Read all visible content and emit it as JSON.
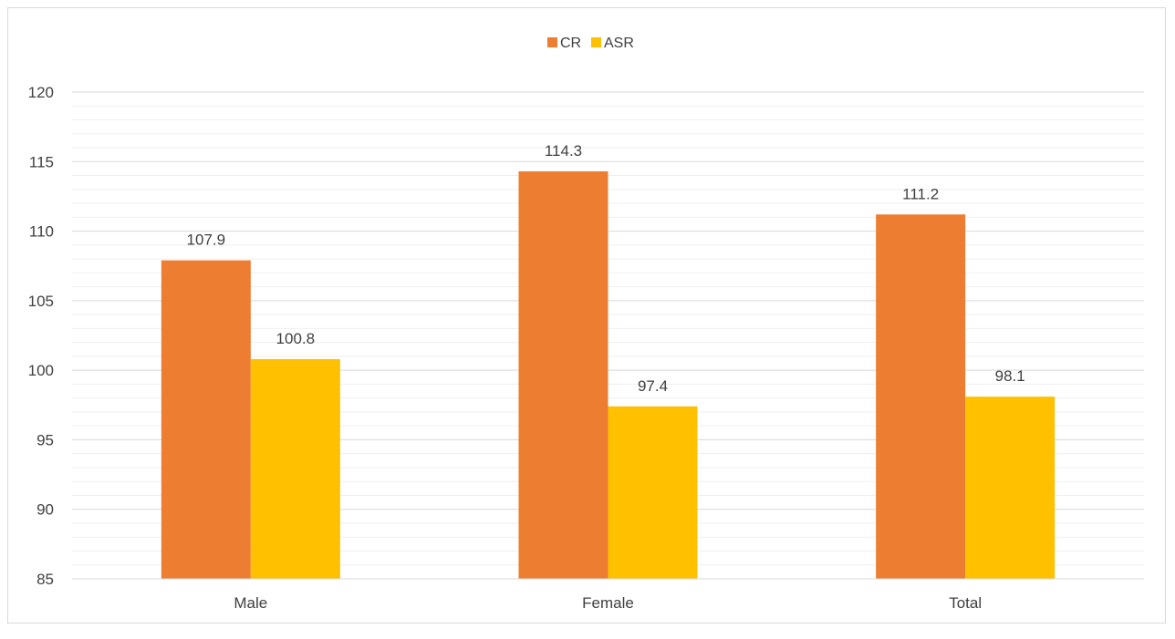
{
  "chart_data": {
    "type": "bar",
    "categories": [
      "Male",
      "Female",
      "Total"
    ],
    "series": [
      {
        "name": "CR",
        "values": [
          107.9,
          114.3,
          111.2
        ],
        "color": "#ED7D31"
      },
      {
        "name": "ASR",
        "values": [
          100.8,
          97.4,
          98.1
        ],
        "color": "#FFC000"
      }
    ],
    "data_labels": {
      "CR": [
        "107.9",
        "114.3",
        "111.2"
      ],
      "ASR": [
        "100.8",
        "97.4",
        "98.1"
      ]
    },
    "ylim": [
      85,
      120
    ],
    "yticks": [
      "85",
      "90",
      "95",
      "100",
      "105",
      "110",
      "115",
      "120"
    ],
    "ytick_values": [
      85,
      90,
      95,
      100,
      105,
      110,
      115,
      120
    ],
    "minor_gridline_step": 1,
    "grid": true,
    "legend_position": "top-center",
    "title": "",
    "xlabel": "",
    "ylabel": ""
  }
}
